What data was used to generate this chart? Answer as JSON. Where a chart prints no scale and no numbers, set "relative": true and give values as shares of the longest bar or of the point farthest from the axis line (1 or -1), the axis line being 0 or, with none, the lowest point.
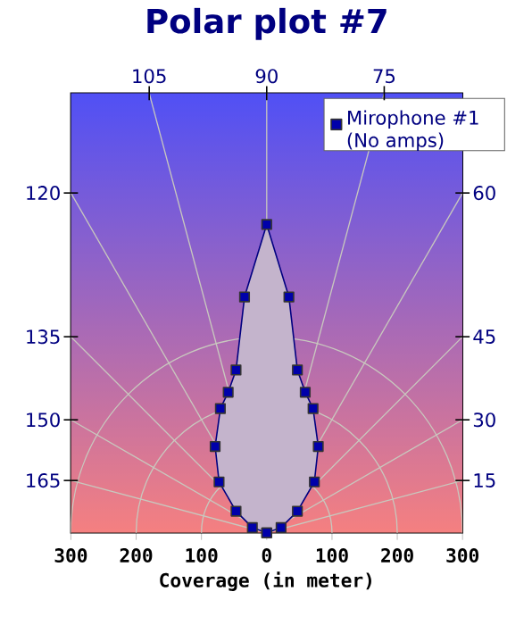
{
  "chart_data": {
    "type": "area",
    "title": "Polar plot #7",
    "xlabel": "Coverage (in meter)",
    "series": [
      {
        "name": "Mirophone #1 (No amps)",
        "color": "#c4b4cc",
        "x": [
          0,
          22,
          47,
          73,
          79,
          71,
          59,
          47,
          34,
          0,
          -34,
          -47,
          -59,
          -71,
          -79,
          -73,
          -47,
          -22,
          0
        ],
        "values": [
          0,
          0.017,
          0.07,
          0.165,
          0.28,
          0.403,
          0.456,
          0.528,
          0.765,
          1,
          0.765,
          0.528,
          0.456,
          0.403,
          0.28,
          0.165,
          0.07,
          0.017,
          0
        ]
      }
    ],
    "relative": true,
    "xlim": [
      -300,
      300
    ],
    "xticks": [
      {
        "value": -300,
        "label": "300"
      },
      {
        "value": -200,
        "label": "200"
      },
      {
        "value": -100,
        "label": "100"
      },
      0,
      100,
      200,
      300
    ],
    "annotations": [
      "105",
      "90",
      "75",
      "120",
      "135",
      "150",
      "165",
      "60",
      "45",
      "30",
      "15"
    ],
    "grid": true,
    "legend": "top right",
    "marker": "square",
    "line_style": "solid"
  }
}
